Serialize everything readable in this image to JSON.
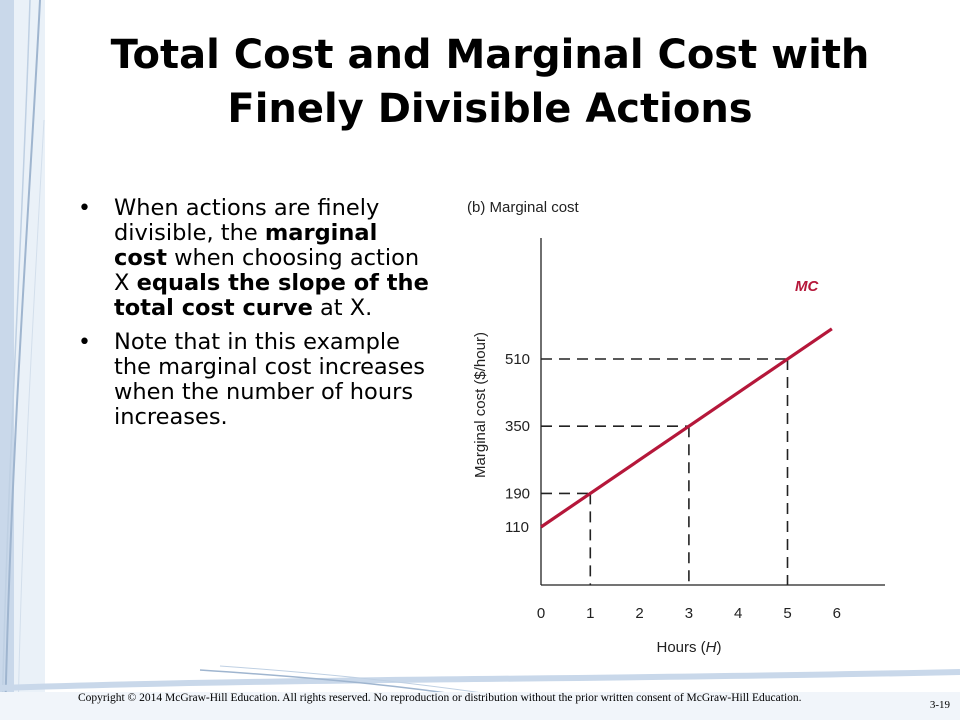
{
  "slide": {
    "title_line1": "Total Cost and Marginal Cost with",
    "title_line2": "Finely Divisible Actions",
    "bullet1": {
      "t1": "When actions are finely divisible, the ",
      "b1": "marginal cost",
      "t2": " when choosing action X ",
      "b2": "equals the slope of the total cost curve",
      "t3": " at X."
    },
    "bullet2": "Note that in this example the marginal cost increases when the number of hours increases.",
    "copyright": "Copyright © 2014 McGraw-Hill Education. All rights reserved. No reproduction or distribution without the prior written consent of McGraw-Hill Education.",
    "page_number": "3-19"
  },
  "colors": {
    "mc_line": "#b5173a",
    "deco": "#b9cbe0"
  },
  "chart_data": {
    "type": "line",
    "title": "(b) Marginal cost",
    "xlabel": "Hours (H)",
    "ylabel": "Marginal cost ($/hour)",
    "x_ticks": [
      0,
      1,
      2,
      3,
      4,
      5,
      6
    ],
    "y_ticks": [
      110,
      190,
      350,
      510
    ],
    "xlim": [
      0,
      6
    ],
    "series": [
      {
        "name": "MC",
        "x": [
          0,
          5.9
        ],
        "y": [
          110,
          582
        ]
      }
    ],
    "reference_points": [
      {
        "x": 1,
        "y": 190
      },
      {
        "x": 3,
        "y": 350
      },
      {
        "x": 5,
        "y": 510
      }
    ],
    "grid": false
  }
}
